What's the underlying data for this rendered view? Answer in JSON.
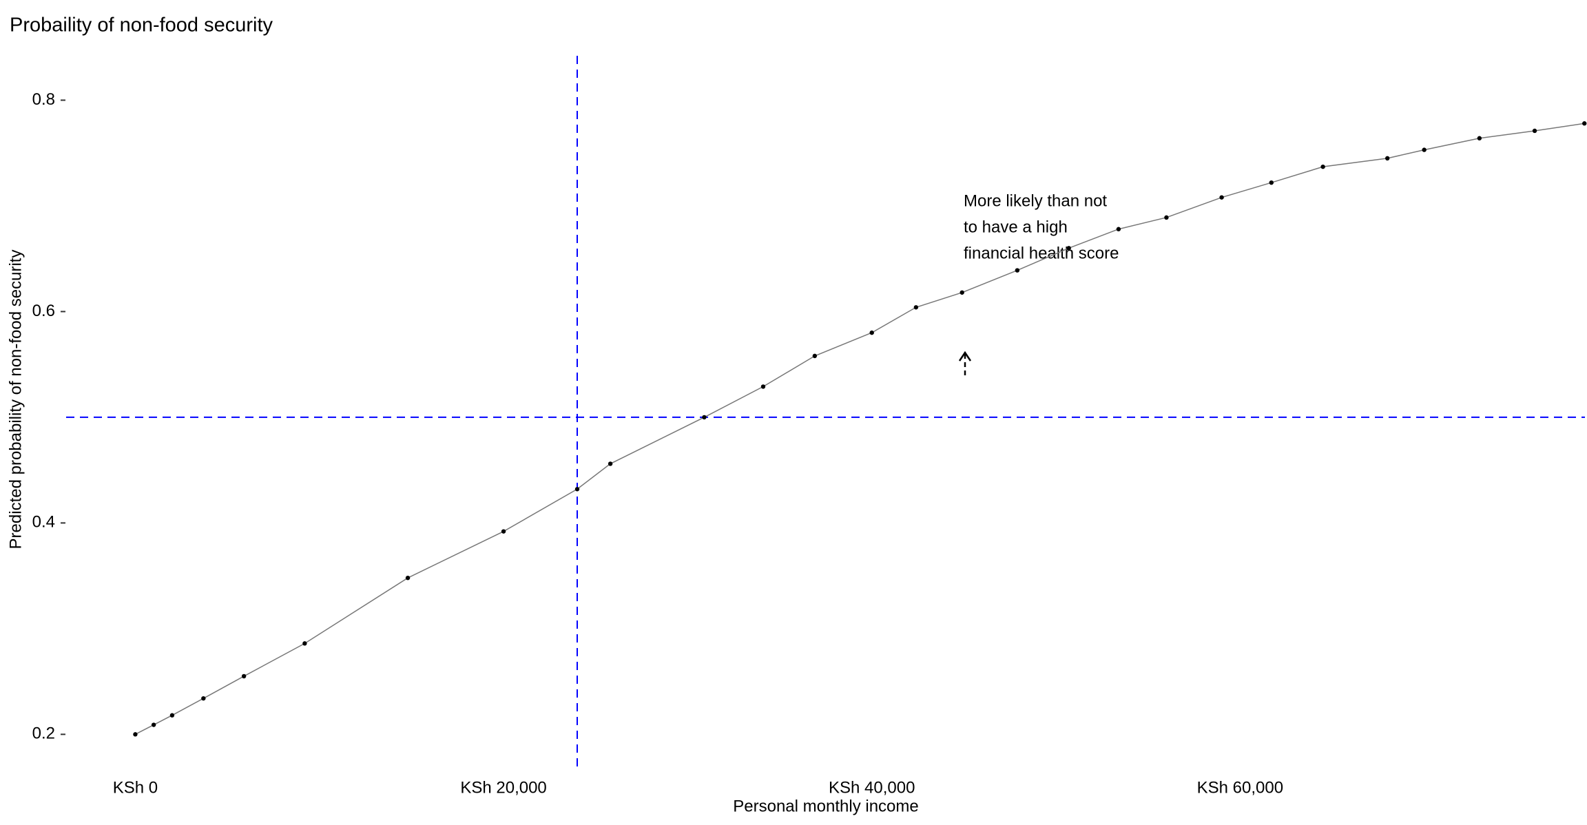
{
  "chart_data": {
    "type": "line",
    "title": "Probaility of non-food security",
    "x_label": "Personal monthly income",
    "y_label": "Predicted probability of non-food security",
    "x": [
      0,
      1000,
      2000,
      3700,
      5900,
      9200,
      14800,
      20000,
      24000,
      25800,
      30900,
      34100,
      36900,
      40000,
      42400,
      44900,
      47900,
      50700,
      53400,
      56000,
      59000,
      61700,
      64500,
      68000,
      70000,
      73000,
      76000,
      78700
    ],
    "series": [
      {
        "name": "Predicted probability",
        "color": "#000000",
        "values": [
          0.2,
          0.209,
          0.218,
          0.234,
          0.255,
          0.286,
          0.348,
          0.392,
          0.432,
          0.456,
          0.5,
          0.529,
          0.558,
          0.58,
          0.604,
          0.618,
          0.639,
          0.66,
          0.678,
          0.689,
          0.708,
          0.722,
          0.737,
          0.745,
          0.753,
          0.764,
          0.771,
          0.778
        ]
      }
    ],
    "xlim": [
      -3757,
      78729
    ],
    "ylim": [
      0.167,
      0.842
    ],
    "xticks": [
      {
        "value": 0,
        "label": "KSh 0"
      },
      {
        "value": 20000,
        "label": "KSh 20,000"
      },
      {
        "value": 40000,
        "label": "KSh 40,000"
      },
      {
        "value": 60000,
        "label": "KSh 60,000"
      }
    ],
    "yticks": [
      0.2,
      0.4,
      0.6,
      0.8
    ],
    "vline": 24000,
    "hline": 0.5,
    "reference_color": "#0000ff",
    "annotation": [
      "More likely than not",
      "to have a high",
      "financial health score"
    ]
  }
}
